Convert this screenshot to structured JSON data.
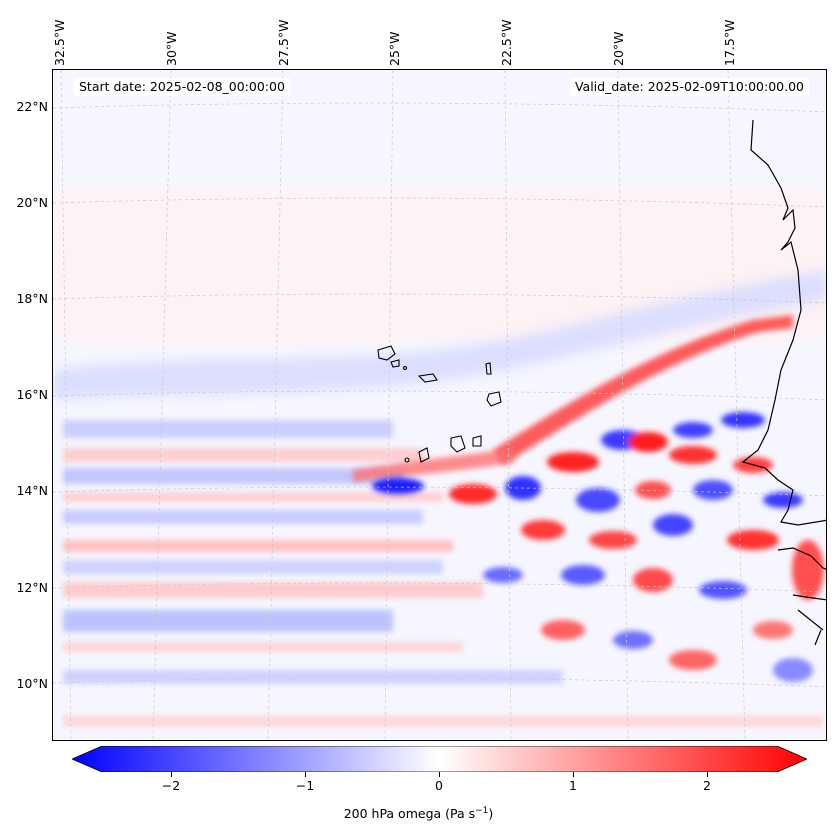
{
  "header": {
    "start_date": "Start date: 2025-02-08_00:00:00",
    "valid_date": "Valid_date: 2025-02-09T10:00:00.00"
  },
  "axes": {
    "lat_ticks": [
      "22°N",
      "20°N",
      "18°N",
      "16°N",
      "14°N",
      "12°N",
      "10°N"
    ],
    "lon_ticks": [
      "32.5°W",
      "30°W",
      "27.5°W",
      "25°W",
      "22.5°W",
      "20°W",
      "17.5°W"
    ]
  },
  "map": {
    "region": "Cape Verde and West African coast",
    "lat_range": [
      9,
      23
    ],
    "lon_range": [
      -33,
      -16
    ],
    "islands": [
      "Santo Antão",
      "São Vicente",
      "Santa Luzia",
      "São Nicolau",
      "Sal",
      "Boa Vista",
      "Maio",
      "Santiago",
      "Fogo",
      "Brava"
    ],
    "coastline_color": "#000000",
    "gridline_color": "#c8c8c8"
  },
  "colorbar": {
    "ticks": [
      "−2",
      "−1",
      "0",
      "1",
      "2"
    ],
    "tick_values": [
      -2,
      -1,
      0,
      1,
      2
    ],
    "range": [
      -2.5,
      2.5
    ],
    "label": "200 hPa omega (Pa s",
    "label_sup": "−1",
    "label_end": ")",
    "negative_color": "#0000ff",
    "neutral_color": "#ffffff",
    "positive_color": "#ff0000"
  },
  "colors": {
    "strong_blue": "#0000ff",
    "strong_red": "#ff0000",
    "light_blue": "#c8ccff",
    "light_red": "#ffd0d0"
  }
}
